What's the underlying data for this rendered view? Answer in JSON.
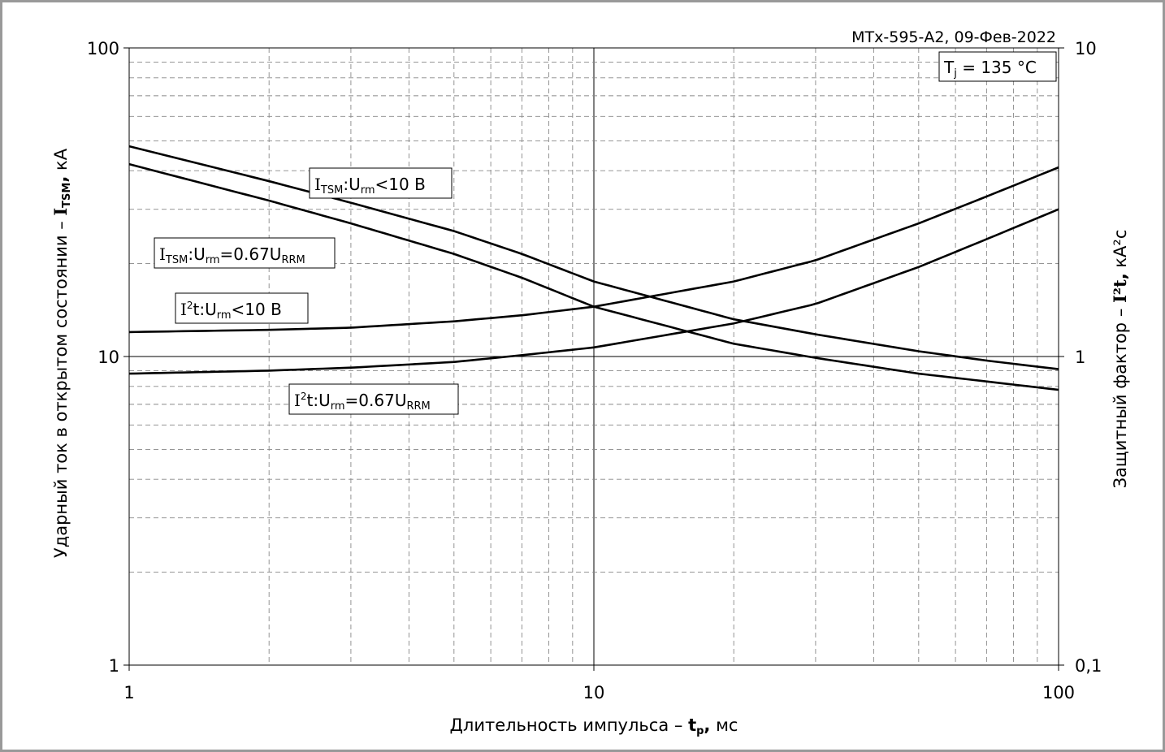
{
  "header": {
    "doc_id": "МТх-595-А2, 09-Фев-2022",
    "tj_label": "T",
    "tj_sub": "j",
    "tj_rest": " = 135 °C"
  },
  "axes": {
    "xlabel_text": "Длительность импульса – ",
    "xlabel_bold": "t",
    "xlabel_bold_sub": "p",
    "xlabel_bold_after": ",",
    "xlabel_unit": " мс",
    "ylabel_left_text": "Ударный ток в открытом состоянии – ",
    "ylabel_left_bold": "I",
    "ylabel_left_bold_sub": "TSM",
    "ylabel_left_bold_after": ",",
    "ylabel_left_unit": " кА",
    "ylabel_right_text": "Защитный фактор – ",
    "ylabel_right_bold": "I²t",
    "ylabel_right_bold_after": ",",
    "ylabel_right_unit": " кА²с",
    "x_ticks": [
      "1",
      "10",
      "100"
    ],
    "y_left_ticks": [
      "1",
      "10",
      "100"
    ],
    "y_right_ticks": [
      "0,1",
      "1",
      "10"
    ]
  },
  "labels": {
    "itsm_10v": {
      "pre": "I",
      "sub1": "TSM",
      "mid": ":U",
      "sub2": "rm",
      "post": "<10 В"
    },
    "itsm_067": {
      "pre": "I",
      "sub1": "TSM",
      "mid": ":U",
      "sub2": "rm",
      "post": "=0.67U",
      "sub3": "RRM"
    },
    "i2t_10v": {
      "pre": "I",
      "sup": "2",
      "mid": "t:U",
      "sub2": "rm",
      "post": "<10 В"
    },
    "i2t_067": {
      "pre": "I",
      "sup": "2",
      "mid": "t:U",
      "sub2": "rm",
      "post": "=0.67U",
      "sub3": "RRM"
    }
  },
  "chart_data": {
    "type": "line",
    "x_scale": "log",
    "y_scale": "log",
    "xlim": [
      1,
      100
    ],
    "ylim_left": [
      1,
      100
    ],
    "ylim_right": [
      0.1,
      10
    ],
    "grid": true,
    "series": [
      {
        "name": "ITSM:Urm<10 В",
        "axis": "left",
        "x": [
          1,
          2,
          3,
          5,
          7,
          10,
          20,
          30,
          50,
          70,
          100
        ],
        "y": [
          48,
          37,
          31.5,
          25.5,
          21.5,
          17.5,
          13.2,
          11.8,
          10.4,
          9.7,
          9.1
        ]
      },
      {
        "name": "ITSM:Urm=0.67URRM",
        "axis": "left",
        "x": [
          1,
          2,
          3,
          5,
          7,
          10,
          20,
          30,
          50,
          70,
          100
        ],
        "y": [
          42,
          32,
          27,
          21.5,
          18,
          14.5,
          11,
          9.9,
          8.8,
          8.3,
          7.8
        ]
      },
      {
        "name": "I²t:Urm<10 В",
        "axis": "right",
        "x": [
          1,
          2,
          3,
          5,
          7,
          10,
          20,
          30,
          50,
          70,
          100
        ],
        "y": [
          1.2,
          1.22,
          1.24,
          1.3,
          1.36,
          1.45,
          1.75,
          2.05,
          2.7,
          3.3,
          4.1
        ]
      },
      {
        "name": "I²t:Urm=0.67URRM",
        "axis": "right",
        "x": [
          1,
          2,
          3,
          5,
          7,
          10,
          20,
          30,
          50,
          70,
          100
        ],
        "y": [
          0.88,
          0.9,
          0.92,
          0.96,
          1.01,
          1.07,
          1.28,
          1.48,
          1.95,
          2.4,
          3.0
        ]
      }
    ]
  }
}
